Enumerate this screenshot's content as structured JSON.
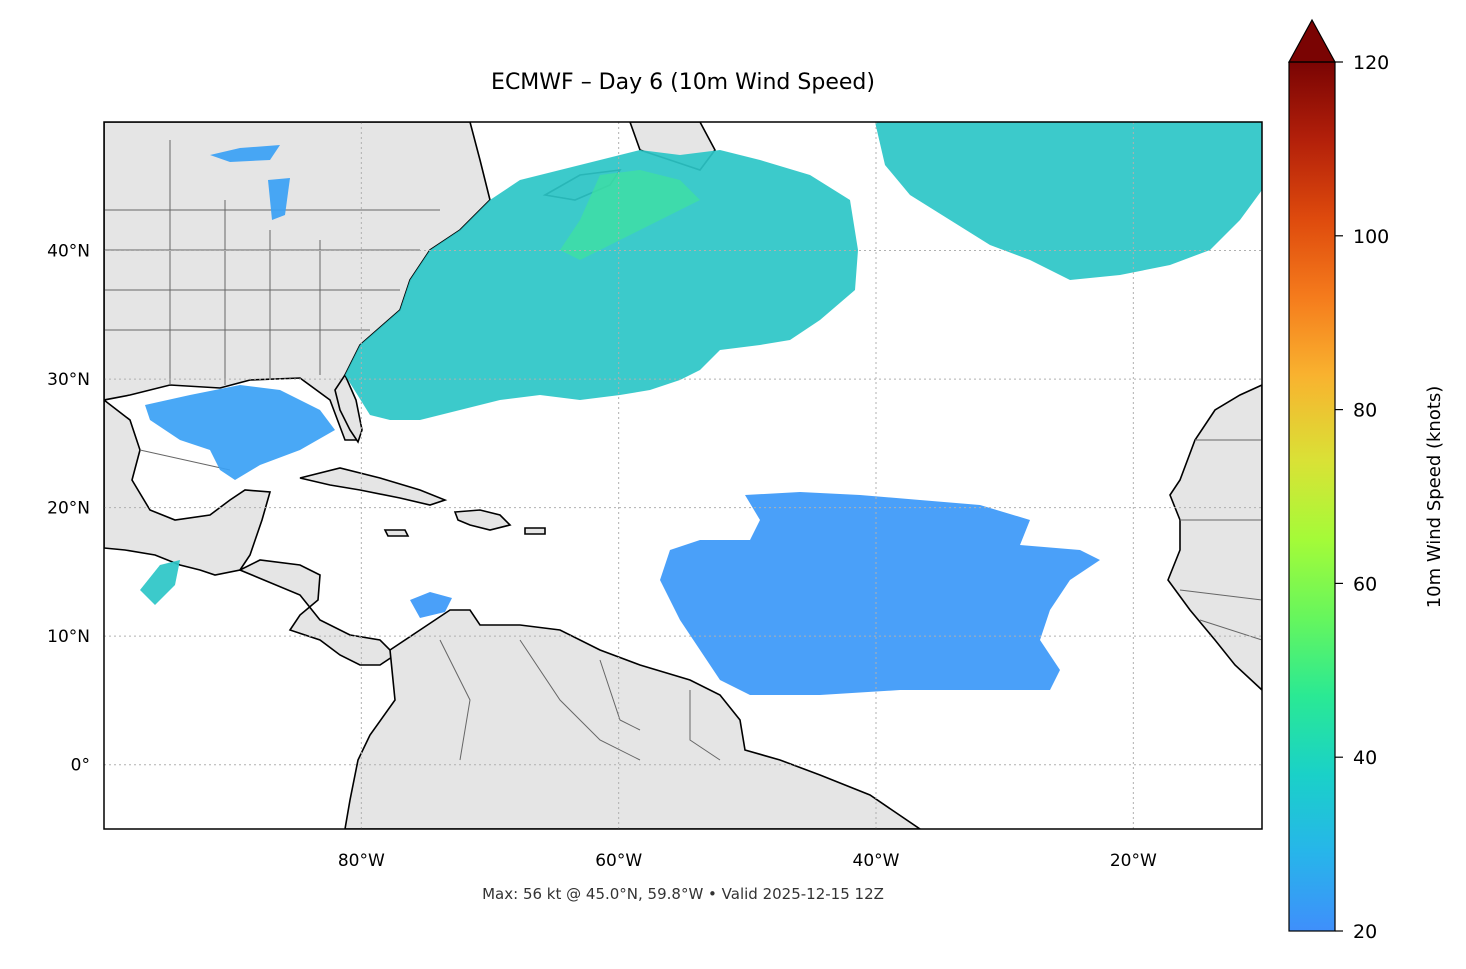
{
  "title": "ECMWF – Day 6 (10m Wind Speed)",
  "footer": "Max: 56 kt @ 45.0°N, 59.8°W • Valid 2025-12-15 12Z",
  "map": {
    "lon_range": [
      -100,
      -10
    ],
    "lat_range": [
      -5,
      50
    ],
    "lat_ticks": [
      {
        "value": 40,
        "label": "40°N"
      },
      {
        "value": 30,
        "label": "30°N"
      },
      {
        "value": 20,
        "label": "20°N"
      },
      {
        "value": 10,
        "label": "10°N"
      },
      {
        "value": 0,
        "label": "0°"
      }
    ],
    "lon_ticks": [
      {
        "value": -80,
        "label": "80°W"
      },
      {
        "value": -60,
        "label": "60°W"
      },
      {
        "value": -40,
        "label": "40°W"
      },
      {
        "value": -20,
        "label": "20°W"
      }
    ],
    "gridlines": true,
    "land_color": "#e5e5e5",
    "coast_color": "#000000",
    "border_color": "#666666",
    "max_marker": {
      "lat": 45.0,
      "lon": -59.8,
      "value_kt": 56
    }
  },
  "colorbar": {
    "label": "10m Wind Speed (knots)",
    "min": 20,
    "max": 120,
    "ticks": [
      {
        "value": 20,
        "label": "20"
      },
      {
        "value": 40,
        "label": "40"
      },
      {
        "value": 60,
        "label": "60"
      },
      {
        "value": 80,
        "label": "80"
      },
      {
        "value": 100,
        "label": "100"
      },
      {
        "value": 120,
        "label": "120"
      }
    ],
    "extend": "max",
    "colors": [
      "#3f8ffb",
      "#27b5ea",
      "#1ad1c8",
      "#2ae994",
      "#66f65d",
      "#a4fb38",
      "#d9e236",
      "#f9b22f",
      "#f57b1c",
      "#de4a0d",
      "#b3200a",
      "#7a0403"
    ]
  }
}
